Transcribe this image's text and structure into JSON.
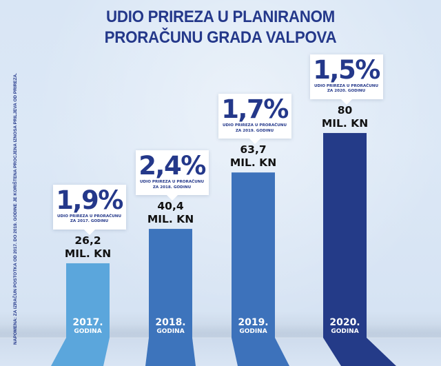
{
  "title": {
    "line1": "UDIO PRIREZA U PLANIRANOM",
    "line2": "PRORAČUNU GRADA VALPOVA"
  },
  "note": "NAPOMENA: ZA IZRAČUN  POSTOTKA OD 2017. DO 2019. GODINE JE KORIŠTENA PROCJENA IZNOSA PRILJEVA OD PRIREZA.",
  "colors": {
    "title": "#24388a",
    "bars": [
      "#5ba6dc",
      "#3d74bc",
      "#3d72bb",
      "#243b88"
    ]
  },
  "chart_data": {
    "type": "bar",
    "title": "UDIO PRIREZA U PLANIRANOM PRORAČUNU GRADA VALPOVA",
    "xlabel": "",
    "ylabel": "",
    "unit": "MIL. KN",
    "categories": [
      "2017.",
      "2018.",
      "2019.",
      "2020."
    ],
    "category_sublabel": "GODINA",
    "values": [
      26.2,
      40.4,
      63.7,
      80
    ],
    "value_labels": [
      "26,2",
      "40,4",
      "63,7",
      "80"
    ],
    "share_percent": [
      1.9,
      2.4,
      1.7,
      1.5
    ],
    "share_labels": [
      "1,9%",
      "2,4%",
      "1,7%",
      "1,5%"
    ],
    "share_captions": [
      [
        "UDIO PRIREZA U PRORAČUNU",
        "ZA 2017. GODINU"
      ],
      [
        "UDIO PRIREZA U PRORAČUNU",
        "ZA 2018. GODINU"
      ],
      [
        "UDIO PRIREZA U PRORAČUNU",
        "ZA 2019. GODINU"
      ],
      [
        "UDIO PRIREZA U PRORAČUNU",
        "ZA 2020. GODINU"
      ]
    ],
    "grid": false,
    "legend": "none"
  }
}
